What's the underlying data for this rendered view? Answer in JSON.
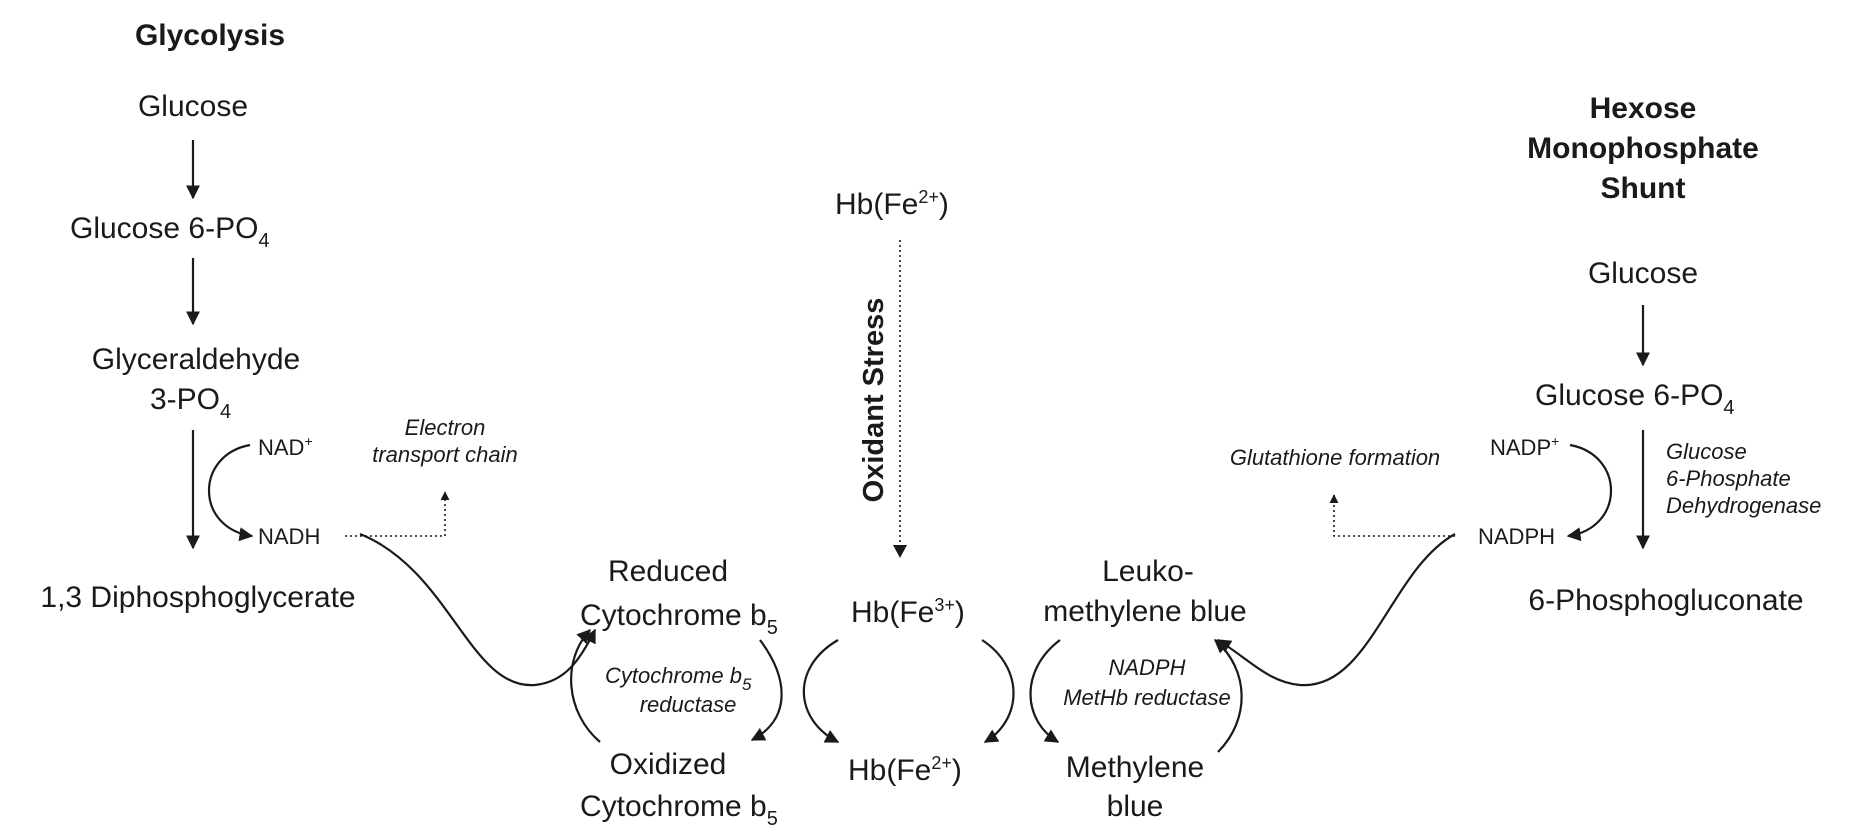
{
  "glycolysis": {
    "title": "Glycolysis",
    "glucose": "Glucose",
    "g6p_main": "Glucose 6-PO",
    "g6p_sub": "4",
    "gap_line1": "Glyceraldehyde",
    "gap_line2_main": "3-PO",
    "gap_line2_sub": "4",
    "nad": "NAD",
    "nad_sup": "+",
    "nadh": "NADH",
    "dpg": "1,3 Diphosphoglycerate",
    "etc_line1": "Electron",
    "etc_line2": "transport chain"
  },
  "center": {
    "hb_top_main": "Hb(Fe",
    "hb_top_sup": "2+",
    "hb_top_close": ")",
    "oxidant_stress": "Oxidant Stress",
    "hb3_main": "Hb(Fe",
    "hb3_sup": "3+",
    "hb3_close": ")",
    "hb2_main": "Hb(Fe",
    "hb2_sup": "2+",
    "hb2_close": ")"
  },
  "cytochrome": {
    "reduced_line1": "Reduced",
    "reduced_line2_main": "Cytochrome b",
    "reduced_line2_sub": "5",
    "enzyme_line1_main": "Cytochrome b",
    "enzyme_line1_sub": "5",
    "enzyme_line2": "reductase",
    "oxidized_line1": "Oxidized",
    "oxidized_line2_main": "Cytochrome b",
    "oxidized_line2_sub": "5"
  },
  "methylene": {
    "leuko_line1": "Leuko-",
    "leuko_line2": "methylene blue",
    "enzyme_line1": "NADPH",
    "enzyme_line2": "MetHb reductase",
    "mb_line1": "Methylene",
    "mb_line2": "blue"
  },
  "hmp": {
    "title_line1": "Hexose",
    "title_line2": "Monophosphate",
    "title_line3": "Shunt",
    "glucose": "Glucose",
    "g6p_main": "Glucose 6-PO",
    "g6p_sub": "4",
    "nadp": "NADP",
    "nadp_sup": "+",
    "nadph": "NADPH",
    "enzyme_line1": "Glucose",
    "enzyme_line2": "6-Phosphate",
    "enzyme_line3": "Dehydrogenase",
    "product": "6-Phosphogluconate",
    "glutathione": "Glutathione formation"
  }
}
